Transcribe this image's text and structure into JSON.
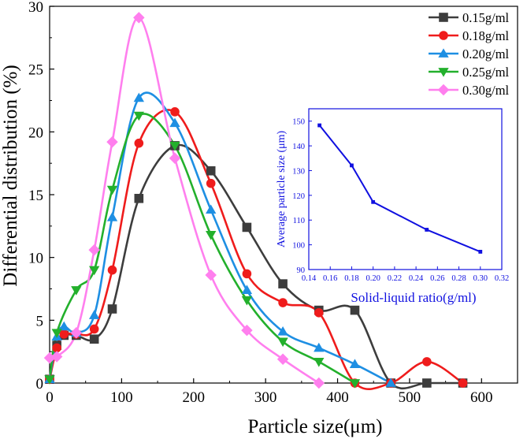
{
  "chart_data": [
    {
      "type": "line",
      "title": "",
      "xlabel": "Particle size(μm)",
      "ylabel": "Differential distribution (%)",
      "xlim": [
        0,
        650
      ],
      "ylim": [
        0,
        30
      ],
      "xticks": [
        0,
        100,
        200,
        300,
        400,
        500,
        600
      ],
      "yticks": [
        0,
        5,
        10,
        15,
        20,
        25,
        30
      ],
      "xtick_labels": [
        "0",
        "100",
        "200",
        "300",
        "400",
        "500",
        "600"
      ],
      "ytick_labels": [
        "0",
        "5",
        "10",
        "15",
        "20",
        "25",
        "30"
      ],
      "legend_position": "top-right",
      "series": [
        {
          "name": "0.15g/ml",
          "color": "#3d3d3d",
          "marker": "square",
          "points": [
            [
              0,
              0.3
            ],
            [
              10,
              3.0
            ],
            [
              20,
              3.8
            ],
            [
              37,
              3.8
            ],
            [
              62,
              3.5
            ],
            [
              87,
              5.9
            ],
            [
              124,
              14.7
            ],
            [
              174,
              18.9
            ],
            [
              224,
              16.9
            ],
            [
              274,
              12.4
            ],
            [
              324,
              7.9
            ],
            [
              374,
              5.8
            ],
            [
              424,
              5.8
            ],
            [
              474,
              0
            ],
            [
              524,
              0
            ],
            [
              574,
              0
            ]
          ]
        },
        {
          "name": "0.18g/ml",
          "color": "#ef1c1c",
          "marker": "circle",
          "points": [
            [
              0,
              0.3
            ],
            [
              10,
              2.8
            ],
            [
              20,
              3.9
            ],
            [
              37,
              3.9
            ],
            [
              62,
              4.3
            ],
            [
              87,
              9.0
            ],
            [
              124,
              19.1
            ],
            [
              174,
              21.6
            ],
            [
              224,
              15.9
            ],
            [
              274,
              8.7
            ],
            [
              324,
              6.4
            ],
            [
              374,
              5.6
            ],
            [
              424,
              0
            ],
            [
              474,
              0
            ],
            [
              524,
              1.7
            ],
            [
              574,
              0
            ]
          ]
        },
        {
          "name": "0.20g/ml",
          "color": "#1e8fe3",
          "marker": "triangle-up",
          "points": [
            [
              0,
              0.3
            ],
            [
              10,
              3.7
            ],
            [
              20,
              4.5
            ],
            [
              37,
              4.0
            ],
            [
              62,
              5.4
            ],
            [
              87,
              13.2
            ],
            [
              124,
              22.7
            ],
            [
              174,
              20.7
            ],
            [
              224,
              13.8
            ],
            [
              274,
              7.4
            ],
            [
              324,
              4.1
            ],
            [
              374,
              2.8
            ],
            [
              424,
              1.5
            ],
            [
              474,
              0
            ]
          ]
        },
        {
          "name": "0.25g/ml",
          "color": "#23b02c",
          "marker": "triangle-down",
          "points": [
            [
              0,
              0.3
            ],
            [
              10,
              4.0
            ],
            [
              37,
              7.4
            ],
            [
              62,
              9.0
            ],
            [
              87,
              15.4
            ],
            [
              124,
              21.3
            ],
            [
              174,
              18.9
            ],
            [
              224,
              11.8
            ],
            [
              274,
              6.6
            ],
            [
              324,
              3.3
            ],
            [
              374,
              1.7
            ],
            [
              424,
              0
            ]
          ]
        },
        {
          "name": "0.30g/ml",
          "color": "#ff7fee",
          "marker": "diamond",
          "points": [
            [
              0,
              2.0
            ],
            [
              10,
              2.1
            ],
            [
              37,
              4.0
            ],
            [
              62,
              10.6
            ],
            [
              87,
              19.2
            ],
            [
              124,
              29.1
            ],
            [
              174,
              17.9
            ],
            [
              224,
              8.6
            ],
            [
              274,
              4.2
            ],
            [
              324,
              1.9
            ],
            [
              374,
              0
            ]
          ]
        }
      ]
    },
    {
      "type": "line",
      "title": "",
      "xlabel": "Solid-liquid ratio(g/ml)",
      "ylabel": "Average particle size (μm)",
      "xlim": [
        0.14,
        0.32
      ],
      "ylim": [
        90,
        155
      ],
      "xticks": [
        0.14,
        0.16,
        0.18,
        0.2,
        0.22,
        0.24,
        0.26,
        0.28,
        0.3,
        0.32
      ],
      "yticks": [
        90,
        100,
        110,
        120,
        130,
        140,
        150
      ],
      "xtick_labels": [
        "0.14",
        "0.16",
        "0.18",
        "0.20",
        "0.22",
        "0.24",
        "0.26",
        "0.28",
        "0.30",
        "0.32"
      ],
      "ytick_labels": [
        "90",
        "100",
        "110",
        "120",
        "130",
        "140",
        "150"
      ],
      "series": [
        {
          "name": "Average particle size",
          "color": "#1010e0",
          "marker": "square",
          "points": [
            [
              0.15,
              148.3
            ],
            [
              0.18,
              132.1
            ],
            [
              0.2,
              117.3
            ],
            [
              0.25,
              106.1
            ],
            [
              0.3,
              97.2
            ]
          ]
        }
      ]
    }
  ]
}
